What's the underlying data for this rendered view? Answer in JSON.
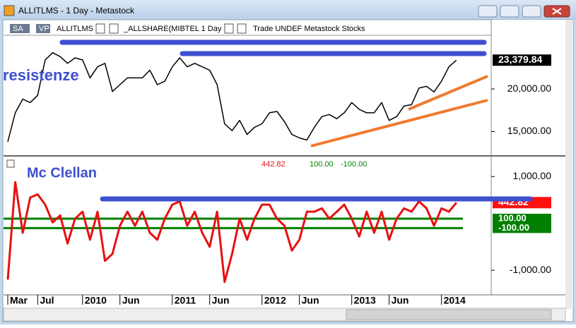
{
  "window": {
    "title": "ALLITLMS - 1 Day - Metastock"
  },
  "toolbar": {
    "items": [
      "SA",
      "VP",
      "ALLITLMS",
      "_ALLSHARE(MIBTEL 1 Day",
      "Trade UNDEF Metastock Stocks"
    ]
  },
  "chart_data": [
    {
      "type": "line",
      "annotation": "resistenze",
      "series": [
        {
          "name": "ALLITLMS",
          "color": "#000000",
          "values": [
            13800,
            17200,
            18800,
            18400,
            19250,
            23400,
            24250,
            23800,
            23000,
            23650,
            23400,
            21300,
            22600,
            23000,
            19700,
            20500,
            21300,
            21300,
            21300,
            22200,
            20500,
            20900,
            22600,
            23650,
            22600,
            23000,
            22600,
            22200,
            20500,
            15900,
            15100,
            16300,
            14650,
            15500,
            15900,
            17200,
            17350,
            16150,
            14650,
            14250,
            14000,
            15500,
            16750,
            17000,
            16500,
            17200,
            18400,
            17600,
            17200,
            17200,
            18400,
            16300,
            16750,
            18000,
            18150,
            20100,
            20300,
            19650,
            20900,
            22600,
            23379.84
          ]
        }
      ],
      "last_value": {
        "value": 23379.84,
        "label": "23,379.84"
      },
      "ylim": [
        12300,
        26300
      ],
      "yticks": [
        {
          "value": 15000,
          "label": "15,000.00"
        },
        {
          "value": 20000,
          "label": "20,000.00"
        }
      ]
    },
    {
      "type": "line",
      "annotation": "Mc Clellan",
      "categories": [
        "Mar",
        null,
        null,
        null,
        "Jul",
        null,
        null,
        null,
        null,
        null,
        "2010",
        null,
        null,
        null,
        null,
        "Jun",
        null,
        null,
        null,
        null,
        null,
        null,
        "2011",
        null,
        null,
        null,
        null,
        "Jun",
        null,
        null,
        null,
        null,
        null,
        null,
        "2012",
        null,
        null,
        null,
        null,
        "Jun",
        null,
        null,
        null,
        null,
        null,
        null,
        "2013",
        null,
        null,
        null,
        null,
        "Jun",
        null,
        null,
        null,
        null,
        null,
        null,
        "2014",
        null,
        null
      ],
      "series": [
        {
          "name": "McClellan",
          "color": "#e81010",
          "values": [
            -1200,
            880,
            -200,
            550,
            620,
            400,
            20,
            170,
            -430,
            100,
            250,
            -350,
            250,
            -800,
            -650,
            -50,
            250,
            -50,
            250,
            -200,
            -350,
            100,
            400,
            470,
            -50,
            250,
            -200,
            -500,
            250,
            -1250,
            -650,
            100,
            -350,
            100,
            400,
            400,
            100,
            -50,
            -580,
            -350,
            250,
            250,
            320,
            100,
            250,
            400,
            100,
            -280,
            250,
            -200,
            250,
            -350,
            100,
            320,
            250,
            470,
            320,
            -50,
            320,
            250,
            442.82
          ]
        }
      ],
      "last_value": {
        "value": 442.82,
        "label": "442.82"
      },
      "reference_lines": [
        {
          "value": 100,
          "label": "100.00",
          "color": "#008000"
        },
        {
          "value": -100,
          "label": "-100.00",
          "color": "#008000"
        }
      ],
      "ylim": [
        -1480,
        1380
      ],
      "yticks": [
        {
          "value": 1000,
          "label": "1,000.00"
        },
        {
          "value": -1000,
          "label": "-1,000.00"
        }
      ]
    }
  ]
}
